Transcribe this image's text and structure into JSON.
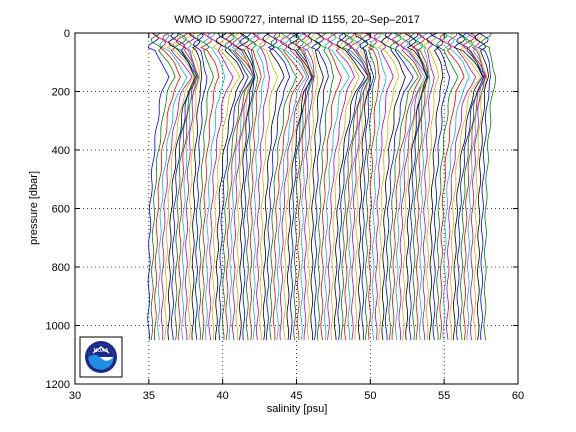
{
  "chart_data": {
    "type": "line",
    "title": "WMO ID 5900727, internal ID 1155, 20–Sep–2017",
    "xlabel": "salinity [psu]",
    "ylabel": "pressure [dbar]",
    "xlim": [
      30,
      60
    ],
    "ylim": [
      0,
      1200
    ],
    "y_reversed": true,
    "grid": true,
    "grid_style": "dotted",
    "x_ticks": [
      30,
      35,
      40,
      45,
      50,
      55,
      60
    ],
    "x_tick_labels": [
      "30",
      "35",
      "40",
      "45",
      "50",
      "55",
      "60"
    ],
    "y_ticks": [
      0,
      200,
      400,
      600,
      800,
      1000,
      1200
    ],
    "y_tick_labels": [
      "0",
      "200",
      "400",
      "600",
      "800",
      "1000",
      "1200"
    ],
    "series_colors": [
      "#0000ff",
      "#008000",
      "#ff0000",
      "#00bfbf",
      "#bf00bf",
      "#bfbf00",
      "#000000"
    ],
    "profile_count": 100,
    "profile_offset_step_psu": 0.23,
    "first_profile_salinity_at_depth_psu": 35.0,
    "pressure_range_dbar": [
      0,
      1050
    ],
    "profile_shape": {
      "pressure": [
        0,
        50,
        100,
        150,
        200,
        250,
        300,
        400,
        500,
        600,
        700,
        800,
        900,
        1000,
        1050
      ],
      "salinity_anomaly": [
        0.2,
        0.3,
        0.9,
        1.3,
        0.9,
        0.7,
        0.6,
        0.35,
        0.2,
        0.1,
        0.05,
        0.02,
        0.0,
        -0.02,
        -0.02
      ]
    },
    "logo": "noaa-logo"
  }
}
